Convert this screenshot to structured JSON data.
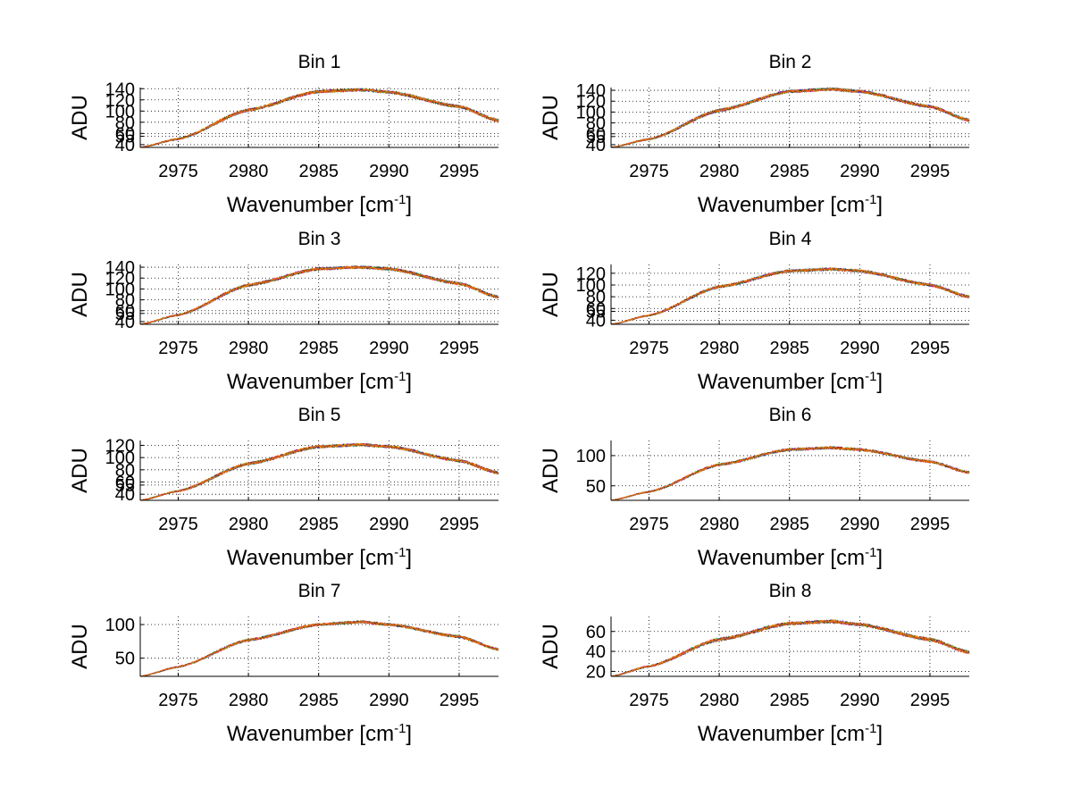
{
  "figure": {
    "background": "#ffffff",
    "series_colors": [
      "#0000ff",
      "#008000",
      "#ff0000",
      "#00bfbf",
      "#bf00bf",
      "#bfbf00",
      "#404040",
      "#ff6400"
    ]
  },
  "chart_data": [
    {
      "type": "line",
      "title": "Bin 1",
      "xlabel": "Wavenumber [cm",
      "xlabel_sup": "-1",
      "xlabel_end": "]",
      "ylabel": "ADU",
      "xlim": [
        2972.3,
        2997.8
      ],
      "ylim": [
        35,
        142
      ],
      "xticks": [
        2975,
        2980,
        2985,
        2990,
        2995
      ],
      "yticks": [
        40,
        55,
        60,
        80,
        100,
        120,
        140
      ],
      "yticklabels": [
        "40",
        "55",
        "60",
        "80",
        "100",
        "120",
        "140"
      ],
      "grid": true,
      "curve": {
        "x": [
          2972.3,
          2975,
          2980,
          2985,
          2988,
          2990,
          2995,
          2997.8
        ],
        "y": [
          35,
          50,
          102,
          135,
          138,
          134,
          108,
          83
        ]
      },
      "noise": 2.5
    },
    {
      "type": "line",
      "title": "Bin 2",
      "xlabel": "Wavenumber [cm",
      "xlabel_sup": "-1",
      "xlabel_end": "]",
      "ylabel": "ADU",
      "xlim": [
        2972.3,
        2997.8
      ],
      "ylim": [
        35,
        145
      ],
      "xticks": [
        2975,
        2980,
        2985,
        2990,
        2995
      ],
      "yticks": [
        40,
        55,
        60,
        80,
        100,
        120,
        140
      ],
      "yticklabels": [
        "40",
        "55",
        "60",
        "80",
        "100",
        "120",
        "140"
      ],
      "grid": true,
      "curve": {
        "x": [
          2972.3,
          2975,
          2980,
          2985,
          2988,
          2990,
          2995,
          2997.8
        ],
        "y": [
          35,
          50,
          103,
          138,
          142,
          138,
          110,
          85
        ]
      },
      "noise": 2.5
    },
    {
      "type": "line",
      "title": "Bin 3",
      "xlabel": "Wavenumber [cm",
      "xlabel_sup": "-1",
      "xlabel_end": "]",
      "ylabel": "ADU",
      "xlim": [
        2972.3,
        2997.8
      ],
      "ylim": [
        35,
        145
      ],
      "xticks": [
        2975,
        2980,
        2985,
        2990,
        2995
      ],
      "yticks": [
        40,
        55,
        60,
        80,
        100,
        120,
        140
      ],
      "yticklabels": [
        "40",
        "55",
        "60",
        "80",
        "100",
        "120",
        "140"
      ],
      "grid": true,
      "curve": {
        "x": [
          2972.3,
          2975,
          2980,
          2985,
          2988,
          2990,
          2995,
          2997.8
        ],
        "y": [
          35,
          52,
          107,
          137,
          140,
          137,
          110,
          85
        ]
      },
      "noise": 2.5
    },
    {
      "type": "line",
      "title": "Bin 4",
      "xlabel": "Wavenumber [cm",
      "xlabel_sup": "-1",
      "xlabel_end": "]",
      "ylabel": "ADU",
      "xlim": [
        2972.3,
        2997.8
      ],
      "ylim": [
        33,
        135
      ],
      "xticks": [
        2975,
        2980,
        2985,
        2990,
        2995
      ],
      "yticks": [
        40,
        55,
        60,
        80,
        100,
        120
      ],
      "yticklabels": [
        "40",
        "55",
        "60",
        "80",
        "100",
        "120"
      ],
      "grid": true,
      "curve": {
        "x": [
          2972.3,
          2975,
          2980,
          2985,
          2988,
          2990,
          2995,
          2997.8
        ],
        "y": [
          33,
          48,
          97,
          124,
          127,
          124,
          100,
          80
        ]
      },
      "noise": 2.2
    },
    {
      "type": "line",
      "title": "Bin 5",
      "xlabel": "Wavenumber [cm",
      "xlabel_sup": "-1",
      "xlabel_end": "]",
      "ylabel": "ADU",
      "xlim": [
        2972.3,
        2997.8
      ],
      "ylim": [
        30,
        128
      ],
      "xticks": [
        2975,
        2980,
        2985,
        2990,
        2995
      ],
      "yticks": [
        40,
        55,
        60,
        80,
        100,
        120
      ],
      "yticklabels": [
        "40",
        "55",
        "60",
        "80",
        "100",
        "120"
      ],
      "grid": true,
      "curve": {
        "x": [
          2972.3,
          2975,
          2980,
          2985,
          2988,
          2990,
          2995,
          2997.8
        ],
        "y": [
          30,
          45,
          90,
          118,
          121,
          118,
          95,
          75
        ]
      },
      "noise": 2.2
    },
    {
      "type": "line",
      "title": "Bin 6",
      "xlabel": "Wavenumber [cm",
      "xlabel_sup": "-1",
      "xlabel_end": "]",
      "ylabel": "ADU",
      "xlim": [
        2972.3,
        2997.8
      ],
      "ylim": [
        26,
        125
      ],
      "xticks": [
        2975,
        2980,
        2985,
        2990,
        2995
      ],
      "yticks": [
        50,
        100
      ],
      "yticklabels": [
        "50",
        "100"
      ],
      "grid": true,
      "curve": {
        "x": [
          2972.3,
          2975,
          2980,
          2985,
          2988,
          2990,
          2995,
          2997.8
        ],
        "y": [
          26,
          40,
          85,
          110,
          113,
          110,
          90,
          72
        ]
      },
      "noise": 2.0
    },
    {
      "type": "line",
      "title": "Bin 7",
      "xlabel": "Wavenumber [cm",
      "xlabel_sup": "-1",
      "xlabel_end": "]",
      "ylabel": "ADU",
      "xlim": [
        2972.3,
        2997.8
      ],
      "ylim": [
        23,
        112
      ],
      "xticks": [
        2975,
        2980,
        2985,
        2990,
        2995
      ],
      "yticks": [
        50,
        100
      ],
      "yticklabels": [
        "50",
        "100"
      ],
      "grid": true,
      "curve": {
        "x": [
          2972.3,
          2975,
          2980,
          2985,
          2988,
          2990,
          2995,
          2997.8
        ],
        "y": [
          23,
          37,
          77,
          100,
          104,
          100,
          82,
          63
        ]
      },
      "noise": 1.8
    },
    {
      "type": "line",
      "title": "Bin 8",
      "xlabel": "Wavenumber [cm",
      "xlabel_sup": "-1",
      "xlabel_end": "]",
      "ylabel": "ADU",
      "xlim": [
        2972.3,
        2997.8
      ],
      "ylim": [
        15,
        75
      ],
      "xticks": [
        2975,
        2980,
        2985,
        2990,
        2995
      ],
      "yticks": [
        20,
        40,
        60
      ],
      "yticklabels": [
        "20",
        "40",
        "60"
      ],
      "grid": true,
      "curve": {
        "x": [
          2972.3,
          2975,
          2980,
          2985,
          2988,
          2990,
          2995,
          2997.8
        ],
        "y": [
          15,
          25,
          52,
          68,
          70,
          67,
          52,
          39
        ]
      },
      "noise": 1.5
    }
  ]
}
